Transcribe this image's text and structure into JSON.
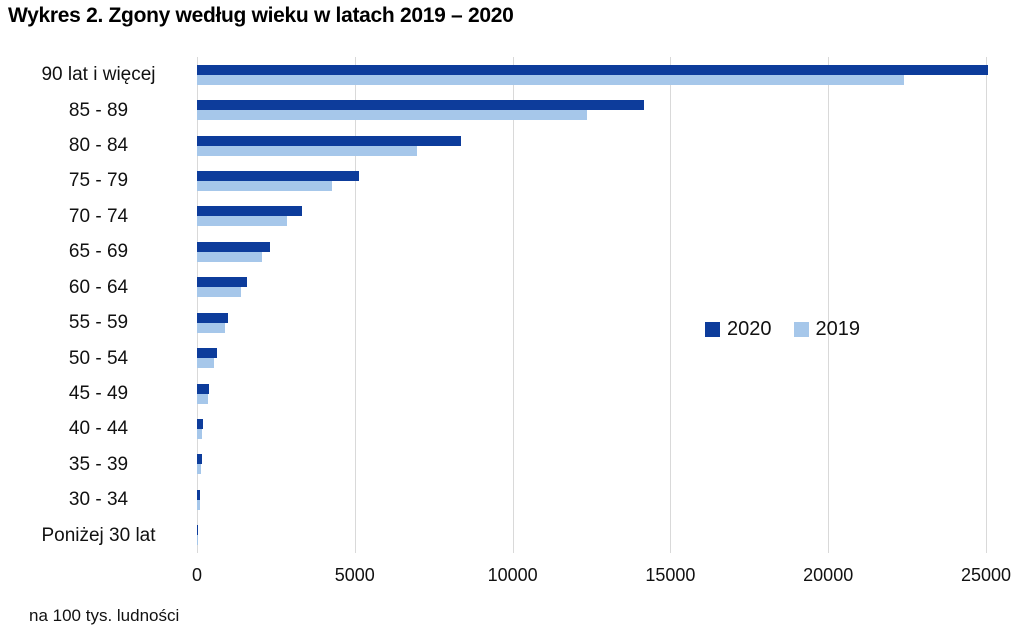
{
  "title": "Wykres 2. Zgony według wieku w latach 2019 – 2020",
  "footnote": "na 100 tys. ludności",
  "colors": {
    "bar_2020": "#0d3c9b",
    "bar_2019": "#a6c7ea",
    "gridline": "#d9d9d9",
    "text": "#111111"
  },
  "legend": {
    "items": [
      {
        "label": "2020",
        "color": "#0d3c9b"
      },
      {
        "label": "2019",
        "color": "#a6c7ea"
      }
    ],
    "position": "middle-right"
  },
  "chart_data": {
    "type": "bar",
    "orientation": "horizontal",
    "title": "Wykres 2. Zgony według wieku w latach 2019 – 2020",
    "unit_note": "na 100 tys. ludności",
    "categories": [
      "90 lat i więcej",
      "85 - 89",
      "80 - 84",
      "75 - 79",
      "70 - 74",
      "65 - 69",
      "60 - 64",
      "55 - 59",
      "50 - 54",
      "45 - 49",
      "40 - 44",
      "35 - 39",
      "30 - 34",
      "Poniżej 30 lat"
    ],
    "series": [
      {
        "name": "2020",
        "color": "#0d3c9b",
        "values": [
          23700,
          13400,
          7900,
          4850,
          3150,
          2200,
          1490,
          920,
          600,
          350,
          190,
          140,
          95,
          30
        ]
      },
      {
        "name": "2019",
        "color": "#a6c7ea",
        "values": [
          21200,
          11700,
          6600,
          4050,
          2700,
          1950,
          1330,
          825,
          505,
          320,
          160,
          105,
          75,
          28
        ]
      }
    ],
    "xlim": [
      0,
      25000
    ],
    "xticks": [
      0,
      5000,
      10000,
      15000,
      20000,
      25000
    ],
    "grid": true,
    "legend_position": "middle-right"
  }
}
